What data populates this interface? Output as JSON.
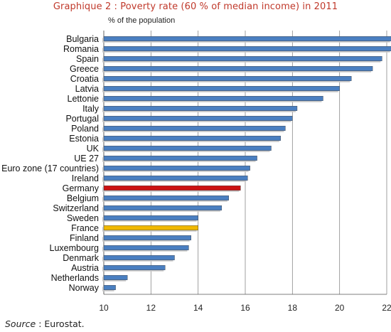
{
  "chart_data": {
    "type": "bar",
    "orientation": "horizontal",
    "title": "Graphique 2 : Poverty rate (60 % of median income) in 2011",
    "subtitle": "% of the population",
    "categories": [
      "Bulgaria",
      "Romania",
      "Spain",
      "Greece",
      "Croatia",
      "Latvia",
      "Lettonie",
      "Italy",
      "Portugal",
      "Poland",
      "Estonia",
      "UK",
      "UE 27",
      "Euro zone (17 countries)",
      "Ireland",
      "Germany",
      "Belgium",
      "Switzerland",
      "Sweden",
      "France",
      "Finland",
      "Luxembourg",
      "Denmark",
      "Austria",
      "Netherlands",
      "Norway"
    ],
    "values": [
      22.2,
      22.2,
      21.8,
      21.4,
      20.5,
      20.0,
      19.3,
      18.2,
      18.0,
      17.7,
      17.5,
      17.1,
      16.5,
      16.2,
      16.1,
      15.8,
      15.3,
      15.0,
      14.0,
      14.0,
      13.7,
      13.6,
      13.0,
      12.6,
      11.0,
      10.5
    ],
    "highlight_colors": {
      "Germany": "#cc1111",
      "France": "#f0b800"
    },
    "default_color": "#4a7fc1",
    "xlim": [
      10,
      22
    ],
    "xticks": [
      10,
      12,
      14,
      16,
      18,
      20,
      22
    ],
    "grid": true,
    "source_label": "Source",
    "source_text": " : Eurostat."
  },
  "colors": {
    "title": "#c0392b",
    "grid": "#888888",
    "axis": "#555555"
  }
}
